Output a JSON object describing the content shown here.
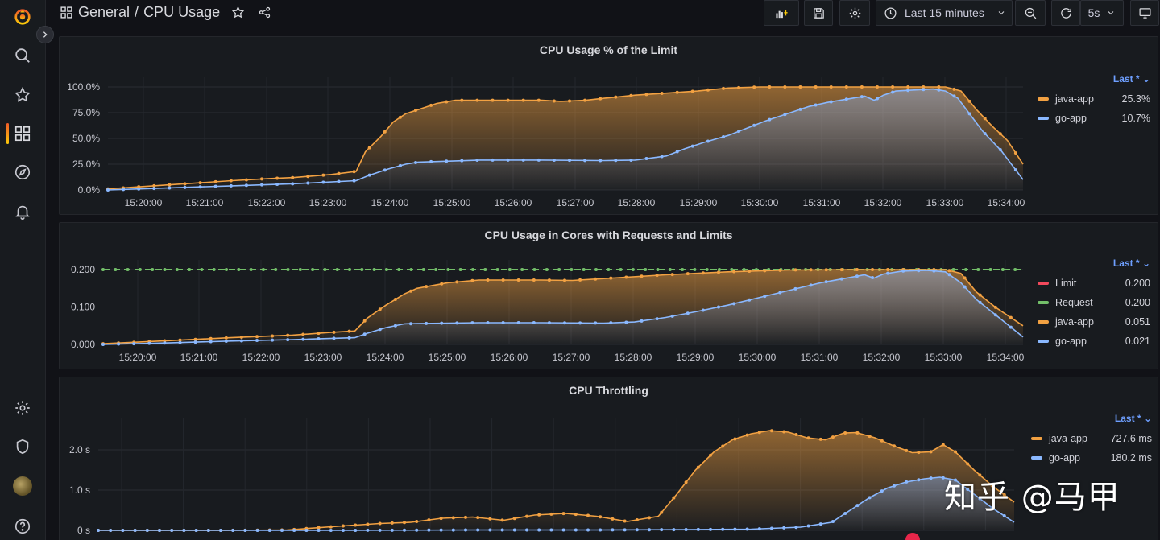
{
  "breadcrumb": {
    "folder": "General",
    "separator": "/",
    "title": "CPU Usage"
  },
  "toolbar": {
    "time_range": "Last 15 minutes",
    "refresh_interval": "5s"
  },
  "icons": {
    "grafana_logo": "grafana-logo-icon",
    "search": "search-icon",
    "starred": "star-icon",
    "dashboards": "dashboards-icon",
    "explore": "compass-icon",
    "alerting": "bell-icon",
    "config": "gear-icon",
    "admin": "shield-icon",
    "help": "help-icon"
  },
  "colors": {
    "java": "#f2a142",
    "go": "#8ab8ff",
    "limit": "#f2495c",
    "request": "#73bf69",
    "legend_header": "#6e9fff"
  },
  "watermark": "知乎 @马甲",
  "panels": [
    {
      "title": "CPU Usage % of the Limit",
      "legend_header": "Last *",
      "legend": [
        {
          "name": "java-app",
          "value": "25.3%",
          "color": "#f2a142"
        },
        {
          "name": "go-app",
          "value": "10.7%",
          "color": "#8ab8ff"
        }
      ]
    },
    {
      "title": "CPU Usage in Cores with Requests and Limits",
      "legend_header": "Last *",
      "legend": [
        {
          "name": "Limit",
          "value": "0.200",
          "color": "#f2495c"
        },
        {
          "name": "Request",
          "value": "0.200",
          "color": "#73bf69"
        },
        {
          "name": "java-app",
          "value": "0.051",
          "color": "#f2a142"
        },
        {
          "name": "go-app",
          "value": "0.021",
          "color": "#8ab8ff"
        }
      ]
    },
    {
      "title": "CPU Throttling",
      "legend_header": "Last *",
      "legend": [
        {
          "name": "java-app",
          "value": "727.6 ms",
          "color": "#f2a142"
        },
        {
          "name": "go-app",
          "value": "180.2 ms",
          "color": "#8ab8ff"
        }
      ]
    }
  ],
  "chart_data": [
    {
      "type": "area",
      "title": "CPU Usage % of the Limit",
      "x_ticks": [
        "15:20:00",
        "15:21:00",
        "15:22:00",
        "15:23:00",
        "15:24:00",
        "15:25:00",
        "15:26:00",
        "15:27:00",
        "15:28:00",
        "15:29:00",
        "15:30:00",
        "15:31:00",
        "15:32:00",
        "15:33:00",
        "15:34:00"
      ],
      "y_ticks": [
        "0.0%",
        "25.0%",
        "50.0%",
        "75.0%",
        "100.0%"
      ],
      "ylim": [
        0,
        100
      ],
      "x_minutes": [
        0,
        14.75
      ],
      "series": [
        {
          "name": "java-app",
          "color": "#f2a142",
          "points": [
            [
              0,
              1
            ],
            [
              1,
              5
            ],
            [
              2,
              9
            ],
            [
              2.6,
              11
            ],
            [
              3,
              12
            ],
            [
              3.6,
              15
            ],
            [
              4,
              18
            ],
            [
              4.15,
              37
            ],
            [
              4.4,
              52
            ],
            [
              4.6,
              66
            ],
            [
              4.8,
              74
            ],
            [
              5,
              78
            ],
            [
              5.3,
              84
            ],
            [
              5.6,
              87
            ],
            [
              6,
              87
            ],
            [
              6.5,
              87
            ],
            [
              7,
              87
            ],
            [
              7.3,
              86
            ],
            [
              7.7,
              87
            ],
            [
              8,
              89
            ],
            [
              8.5,
              92
            ],
            [
              9,
              94
            ],
            [
              9.5,
              96
            ],
            [
              10,
              99
            ],
            [
              10.5,
              100
            ],
            [
              11,
              100
            ],
            [
              12,
              100
            ],
            [
              12.5,
              100
            ],
            [
              13,
              100
            ],
            [
              13.5,
              100
            ],
            [
              13.75,
              96
            ],
            [
              14,
              78
            ],
            [
              14.25,
              62
            ],
            [
              14.5,
              48
            ],
            [
              14.75,
              25
            ]
          ]
        },
        {
          "name": "go-app",
          "color": "#8ab8ff",
          "points": [
            [
              0,
              0
            ],
            [
              1,
              2
            ],
            [
              2,
              4
            ],
            [
              3,
              6
            ],
            [
              4,
              9
            ],
            [
              4.2,
              14
            ],
            [
              4.5,
              20
            ],
            [
              4.8,
              25
            ],
            [
              5,
              27
            ],
            [
              5.5,
              28
            ],
            [
              6,
              29
            ],
            [
              7,
              29
            ],
            [
              8,
              28.5
            ],
            [
              8.5,
              29
            ],
            [
              9,
              33
            ],
            [
              9.3,
              40
            ],
            [
              9.6,
              46
            ],
            [
              10,
              53
            ],
            [
              10.3,
              60
            ],
            [
              10.6,
              67
            ],
            [
              11,
              75
            ],
            [
              11.3,
              81
            ],
            [
              11.6,
              85
            ],
            [
              12,
              89
            ],
            [
              12.2,
              91
            ],
            [
              12.35,
              87
            ],
            [
              12.5,
              92
            ],
            [
              12.7,
              96
            ],
            [
              13,
              97
            ],
            [
              13.3,
              98
            ],
            [
              13.5,
              96
            ],
            [
              13.7,
              89
            ],
            [
              13.9,
              73
            ],
            [
              14.1,
              57
            ],
            [
              14.4,
              38
            ],
            [
              14.75,
              10
            ]
          ]
        }
      ]
    },
    {
      "type": "area",
      "title": "CPU Usage in Cores with Requests and Limits",
      "x_ticks": [
        "15:20:00",
        "15:21:00",
        "15:22:00",
        "15:23:00",
        "15:24:00",
        "15:25:00",
        "15:26:00",
        "15:27:00",
        "15:28:00",
        "15:29:00",
        "15:30:00",
        "15:31:00",
        "15:32:00",
        "15:33:00",
        "15:34:00"
      ],
      "y_ticks": [
        "0.000",
        "0.100",
        "0.200"
      ],
      "ylim": [
        0,
        0.2
      ],
      "x_minutes": [
        -0.05,
        14.75
      ],
      "series": [
        {
          "name": "Request",
          "color": "#73bf69",
          "dashed": true,
          "points": [
            [
              -0.05,
              0.2
            ],
            [
              14.75,
              0.2
            ]
          ]
        },
        {
          "name": "java-app",
          "color": "#f2a142",
          "points": [
            [
              -0.05,
              0.002
            ],
            [
              1,
              0.01
            ],
            [
              2,
              0.018
            ],
            [
              3,
              0.025
            ],
            [
              3.6,
              0.032
            ],
            [
              4,
              0.036
            ],
            [
              4.2,
              0.07
            ],
            [
              4.5,
              0.105
            ],
            [
              4.8,
              0.135
            ],
            [
              5,
              0.15
            ],
            [
              5.5,
              0.165
            ],
            [
              6,
              0.172
            ],
            [
              7,
              0.172
            ],
            [
              7.5,
              0.171
            ],
            [
              8,
              0.176
            ],
            [
              9,
              0.186
            ],
            [
              10,
              0.194
            ],
            [
              11,
              0.199
            ],
            [
              12,
              0.2
            ],
            [
              13,
              0.2
            ],
            [
              13.5,
              0.2
            ],
            [
              13.75,
              0.19
            ],
            [
              14,
              0.14
            ],
            [
              14.3,
              0.1
            ],
            [
              14.75,
              0.05
            ]
          ]
        },
        {
          "name": "go-app",
          "color": "#8ab8ff",
          "points": [
            [
              -0.05,
              0
            ],
            [
              1,
              0.004
            ],
            [
              2,
              0.009
            ],
            [
              3,
              0.013
            ],
            [
              4,
              0.018
            ],
            [
              4.2,
              0.03
            ],
            [
              4.5,
              0.045
            ],
            [
              4.8,
              0.055
            ],
            [
              5,
              0.056
            ],
            [
              6,
              0.058
            ],
            [
              7,
              0.058
            ],
            [
              8,
              0.057
            ],
            [
              8.5,
              0.06
            ],
            [
              9,
              0.072
            ],
            [
              9.5,
              0.088
            ],
            [
              10,
              0.105
            ],
            [
              10.5,
              0.125
            ],
            [
              11,
              0.145
            ],
            [
              11.5,
              0.165
            ],
            [
              12,
              0.18
            ],
            [
              12.2,
              0.186
            ],
            [
              12.35,
              0.177
            ],
            [
              12.5,
              0.188
            ],
            [
              12.8,
              0.196
            ],
            [
              13.2,
              0.198
            ],
            [
              13.5,
              0.194
            ],
            [
              13.75,
              0.165
            ],
            [
              14,
              0.12
            ],
            [
              14.3,
              0.08
            ],
            [
              14.75,
              0.02
            ]
          ]
        }
      ]
    },
    {
      "type": "area",
      "title": "CPU Throttling",
      "y_ticks": [
        "0 s",
        "1.0 s",
        "2.0 s"
      ],
      "ylim": [
        0,
        2.5
      ],
      "x_minutes": [
        -0.05,
        14.75
      ],
      "series": [
        {
          "name": "java-app",
          "color": "#f2a142",
          "points": [
            [
              -0.05,
              0
            ],
            [
              1,
              0
            ],
            [
              2,
              0
            ],
            [
              3,
              0.01
            ],
            [
              4,
              0.12
            ],
            [
              4.5,
              0.17
            ],
            [
              5,
              0.2
            ],
            [
              5.5,
              0.3
            ],
            [
              6,
              0.33
            ],
            [
              6.5,
              0.25
            ],
            [
              7,
              0.38
            ],
            [
              7.5,
              0.42
            ],
            [
              8,
              0.35
            ],
            [
              8.5,
              0.22
            ],
            [
              9,
              0.35
            ],
            [
              9.3,
              0.9
            ],
            [
              9.6,
              1.5
            ],
            [
              9.9,
              1.95
            ],
            [
              10.2,
              2.25
            ],
            [
              10.5,
              2.4
            ],
            [
              10.8,
              2.48
            ],
            [
              11.1,
              2.44
            ],
            [
              11.4,
              2.3
            ],
            [
              11.7,
              2.25
            ],
            [
              12,
              2.42
            ],
            [
              12.2,
              2.43
            ],
            [
              12.5,
              2.3
            ],
            [
              12.8,
              2.1
            ],
            [
              13.1,
              1.93
            ],
            [
              13.4,
              1.95
            ],
            [
              13.6,
              2.13
            ],
            [
              13.8,
              1.95
            ],
            [
              14.1,
              1.5
            ],
            [
              14.4,
              1.1
            ],
            [
              14.75,
              0.7
            ]
          ]
        },
        {
          "name": "go-app",
          "color": "#8ab8ff",
          "points": [
            [
              -0.05,
              0
            ],
            [
              2,
              0
            ],
            [
              4,
              0
            ],
            [
              6,
              0.01
            ],
            [
              8,
              0.01
            ],
            [
              9.5,
              0.02
            ],
            [
              10.5,
              0.03
            ],
            [
              11.3,
              0.08
            ],
            [
              11.8,
              0.2
            ],
            [
              12.1,
              0.5
            ],
            [
              12.4,
              0.8
            ],
            [
              12.7,
              1.05
            ],
            [
              13,
              1.2
            ],
            [
              13.3,
              1.28
            ],
            [
              13.55,
              1.32
            ],
            [
              13.8,
              1.25
            ],
            [
              14.1,
              0.9
            ],
            [
              14.4,
              0.55
            ],
            [
              14.75,
              0.2
            ]
          ]
        }
      ]
    }
  ]
}
